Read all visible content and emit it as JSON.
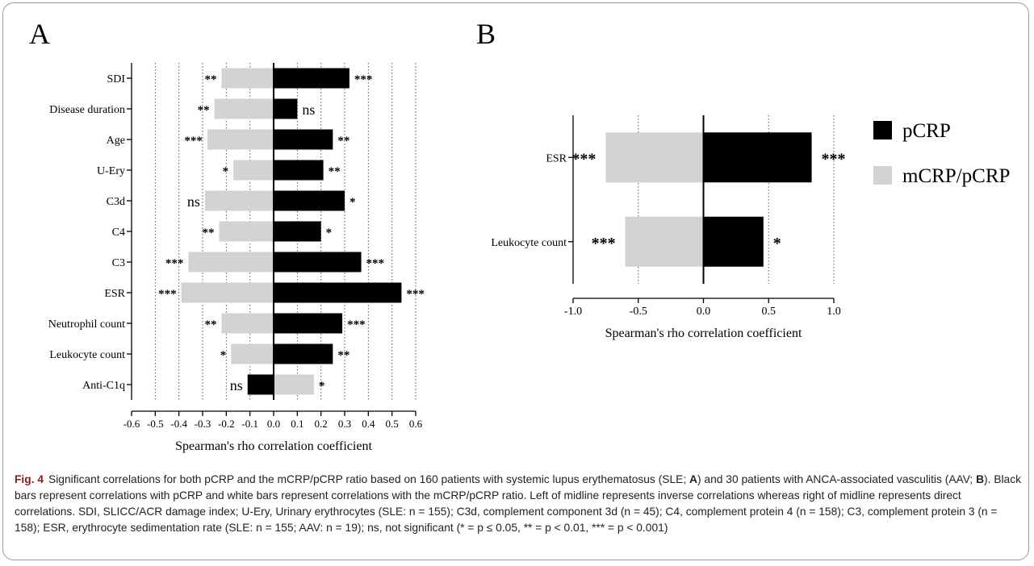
{
  "chart_data": [
    {
      "panel": "A",
      "type": "bar",
      "orientation": "horizontal",
      "categories": [
        "SDI",
        "Disease duration",
        "Age",
        "U-Ery",
        "C3d",
        "C4",
        "C3",
        "ESR",
        "Neutrophil count",
        "Leukocyte count",
        "Anti-C1q"
      ],
      "series": [
        {
          "name": "pCRP",
          "color": "#000000",
          "values": [
            0.32,
            0.1,
            0.25,
            0.21,
            0.3,
            0.2,
            0.37,
            0.54,
            0.29,
            0.25,
            -0.11
          ],
          "significance": [
            "***",
            "ns",
            "**",
            "**",
            "*",
            "*",
            "***",
            "***",
            "***",
            "**",
            "ns"
          ]
        },
        {
          "name": "mCRP/pCRP",
          "color": "#d3d3d3",
          "values": [
            -0.22,
            -0.25,
            -0.28,
            -0.17,
            -0.29,
            -0.23,
            -0.36,
            -0.39,
            -0.22,
            -0.18,
            0.17
          ],
          "significance": [
            "**",
            "**",
            "***",
            "*",
            "ns",
            "**",
            "***",
            "***",
            "**",
            "*",
            "*"
          ]
        }
      ],
      "xlabel": "Spearman's rho correlation coefficient",
      "xlim": [
        -0.6,
        0.6
      ],
      "xticks": [
        "-0.6",
        "-0.5",
        "-0.4",
        "-0.3",
        "-0.2",
        "-0.1",
        "0.0",
        "0.1",
        "0.2",
        "0.3",
        "0.4",
        "0.5",
        "0.6"
      ],
      "gridlines": "dotted vertical"
    },
    {
      "panel": "B",
      "type": "bar",
      "orientation": "horizontal",
      "categories": [
        "ESR",
        "Leukocyte count"
      ],
      "series": [
        {
          "name": "pCRP",
          "color": "#000000",
          "values": [
            0.83,
            0.46
          ],
          "significance": [
            "***",
            "*"
          ]
        },
        {
          "name": "mCRP/pCRP",
          "color": "#d3d3d3",
          "values": [
            -0.75,
            -0.6
          ],
          "significance": [
            "***",
            "***"
          ]
        }
      ],
      "xlabel": "Spearman's rho correlation coefficient",
      "xlim": [
        -1.0,
        1.0
      ],
      "xticks": [
        "-1.0",
        "-0.5",
        "0.0",
        "0.5",
        "1.0"
      ],
      "gridlines": "dotted vertical",
      "legend": {
        "position": "right",
        "items": [
          "pCRP",
          "mCRP/pCRP"
        ]
      }
    }
  ],
  "figure": {
    "label": "Fig. 4",
    "panel_a": "A",
    "panel_b": "B",
    "caption_1": "Significant correlations for both pCRP and the mCRP/pCRP ratio based on 160 patients with systemic lupus erythematosus (SLE; ",
    "caption_a": "A",
    "caption_2": ") and 30 patients with ANCA-associated vasculitis (AAV; ",
    "caption_b": "B",
    "caption_3": "). Black bars represent correlations with pCRP and white bars represent correlations with the mCRP/pCRP ratio. Left of midline represents inverse correlations whereas right of midline represents direct correlations. SDI, SLICC/ACR damage index; U-Ery, Urinary erythrocytes (SLE: n = 155); C3d, complement component 3d (n = 45); C4, complement protein 4 (n = 158); C3, complement protein 3 (n = 158); ESR, erythrocyte sedimentation rate (SLE: n = 155; AAV: n = 19); ns, not significant (* = p ≤ 0.05, ** = p < 0.01, *** = p < 0.001)"
  }
}
